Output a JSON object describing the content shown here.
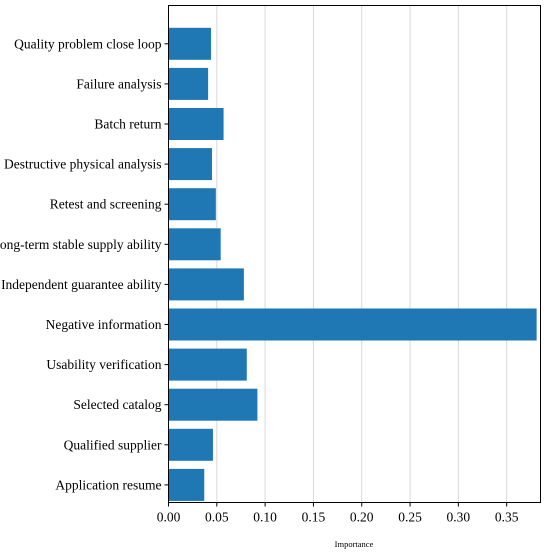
{
  "chart_data": {
    "type": "bar",
    "orientation": "horizontal",
    "categories": [
      "Quality problem close loop",
      "Failure analysis",
      "Batch return",
      "Destructive physical analysis",
      "Retest and screening",
      "Long-term stable supply ability",
      "Independent guarantee ability",
      "Negative information",
      "Usability verification",
      "Selected catalog",
      "Qualified supplier",
      "Application resume"
    ],
    "values": [
      0.044,
      0.041,
      0.057,
      0.045,
      0.049,
      0.054,
      0.078,
      0.381,
      0.081,
      0.092,
      0.046,
      0.037
    ],
    "xlabel": "Importance",
    "ylabel": "",
    "xlim": [
      0,
      0.385
    ],
    "xticks": [
      "0.00",
      "0.05",
      "0.10",
      "0.15",
      "0.20",
      "0.25",
      "0.30",
      "0.35"
    ],
    "xtick_values": [
      0,
      0.05,
      0.1,
      0.15,
      0.2,
      0.25,
      0.3,
      0.35
    ],
    "grid": "vertical",
    "colors": {
      "bar": "#1f77b4",
      "grid": "#d9d9d9",
      "axis": "#000000"
    }
  }
}
